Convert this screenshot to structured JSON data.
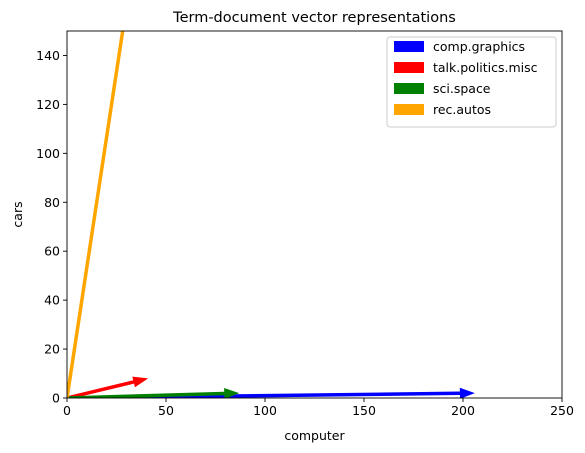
{
  "chart_data": {
    "type": "vector",
    "title": "Term-document vector representations",
    "xlabel": "computer",
    "ylabel": "cars",
    "xlim": [
      0,
      250
    ],
    "ylim": [
      0,
      150
    ],
    "xticks": [
      0,
      50,
      100,
      150,
      200,
      250
    ],
    "yticks": [
      0,
      20,
      40,
      60,
      80,
      100,
      120,
      140
    ],
    "grid": false,
    "legend_position": "top-right",
    "series": [
      {
        "name": "comp.graphics",
        "color": "#0000ff",
        "x": 206,
        "y": 2
      },
      {
        "name": "talk.politics.misc",
        "color": "#ff0000",
        "x": 41,
        "y": 8
      },
      {
        "name": "sci.space",
        "color": "#008000",
        "x": 87,
        "y": 2
      },
      {
        "name": "rec.autos",
        "color": "#ffa500",
        "x": 30,
        "y": 160
      }
    ]
  }
}
